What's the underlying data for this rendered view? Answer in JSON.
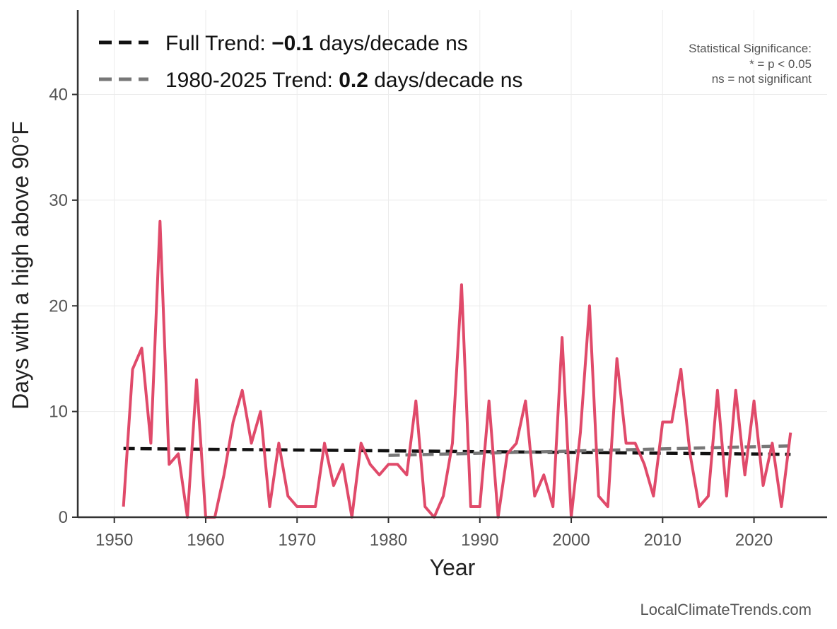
{
  "chart_data": {
    "type": "line",
    "title": "",
    "xlabel": "Year",
    "ylabel": "Days with a high above 90°F",
    "xlim": [
      1946,
      2028
    ],
    "ylim": [
      0,
      48
    ],
    "x_ticks": [
      1950,
      1960,
      1970,
      1980,
      1990,
      2000,
      2010,
      2020
    ],
    "y_ticks": [
      0,
      10,
      20,
      30,
      40
    ],
    "grid": true,
    "legend_position": "top-left",
    "series": [
      {
        "color": "#e04a6a",
        "x": [
          1951,
          1952,
          1953,
          1954,
          1955,
          1956,
          1957,
          1958,
          1959,
          1960,
          1961,
          1962,
          1963,
          1964,
          1965,
          1966,
          1967,
          1968,
          1969,
          1970,
          1971,
          1972,
          1973,
          1974,
          1975,
          1976,
          1977,
          1978,
          1979,
          1980,
          1981,
          1982,
          1983,
          1984,
          1985,
          1986,
          1987,
          1988,
          1989,
          1990,
          1991,
          1992,
          1993,
          1994,
          1995,
          1996,
          1997,
          1998,
          1999,
          2000,
          2001,
          2002,
          2003,
          2004,
          2005,
          2006,
          2007,
          2008,
          2009,
          2010,
          2011,
          2012,
          2013,
          2014,
          2015,
          2016,
          2017,
          2018,
          2019,
          2020,
          2021,
          2022,
          2023,
          2024
        ],
        "values": [
          1,
          14,
          16,
          7,
          28,
          5,
          6,
          0,
          13,
          0,
          0,
          4,
          9,
          12,
          7,
          10,
          1,
          7,
          2,
          1,
          1,
          1,
          7,
          3,
          5,
          0,
          7,
          5,
          4,
          5,
          5,
          4,
          11,
          1,
          0,
          2,
          7,
          22,
          1,
          1,
          11,
          0,
          6,
          7,
          11,
          2,
          4,
          1,
          17,
          0,
          8,
          20,
          2,
          1,
          15,
          7,
          7,
          5,
          2,
          9,
          9,
          14,
          6,
          1,
          2,
          12,
          2,
          12,
          4,
          11,
          3,
          7,
          1,
          8
        ]
      },
      {
        "name": "Full Trend",
        "color": "#111111",
        "dash": "dashed",
        "x": [
          1951,
          2024
        ],
        "values": [
          6.5,
          5.95
        ]
      },
      {
        "name": "1980-2025 Trend",
        "color": "#777777",
        "dash": "dashed",
        "x": [
          1980,
          2024
        ],
        "values": [
          5.85,
          6.75
        ]
      }
    ],
    "legend": [
      {
        "prefix": "Full Trend: ",
        "value": "−0.1",
        "suffix": " days/decade ns",
        "color": "#111111"
      },
      {
        "prefix": "1980-2025 Trend: ",
        "value": "0.2",
        "suffix": " days/decade ns",
        "color": "#777777"
      }
    ],
    "annotation": [
      "Statistical Significance:",
      "* = p < 0.05",
      "ns = not significant"
    ],
    "source": "LocalClimateTrends.com"
  }
}
